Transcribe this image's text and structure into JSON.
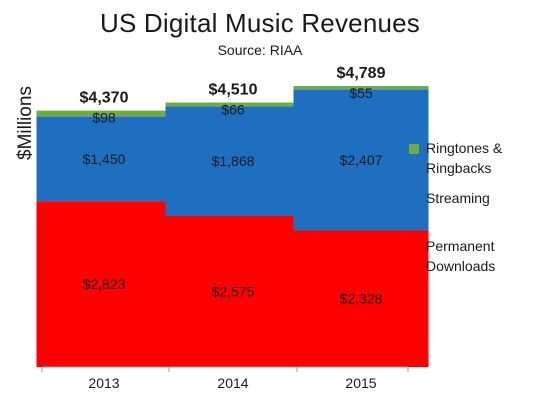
{
  "chart_data": {
    "type": "bar",
    "stacked": true,
    "title": "US Digital Music Revenues",
    "subtitle": "Source: RIAA",
    "ylabel": "$Millions",
    "xlabel": "",
    "categories": [
      "2013",
      "2014",
      "2015"
    ],
    "ylim": [
      0,
      5200
    ],
    "grid": false,
    "legend_position": "right",
    "totals": [
      4370,
      4510,
      4789
    ],
    "total_labels": [
      "$4,370",
      "$4,510",
      "$4,789"
    ],
    "series": [
      {
        "name": "Permanent Downloads",
        "color": "#ff0000",
        "values": [
          2823,
          2575,
          2328
        ],
        "labels": [
          "$2,823",
          "$2,575",
          "$2,328"
        ]
      },
      {
        "name": "Streaming",
        "color": "#1f6fc1",
        "values": [
          1450,
          1868,
          2407
        ],
        "labels": [
          "$1,450",
          "$1,868",
          "$2,407"
        ]
      },
      {
        "name": "Ringtones & Ringbacks",
        "color": "#6fae3c",
        "values": [
          98,
          66,
          55
        ],
        "labels": [
          "$98",
          "$66",
          "$55"
        ]
      }
    ],
    "legend": [
      "Ringtones & Ringbacks",
      "Streaming",
      "Permanent Downloads"
    ]
  }
}
